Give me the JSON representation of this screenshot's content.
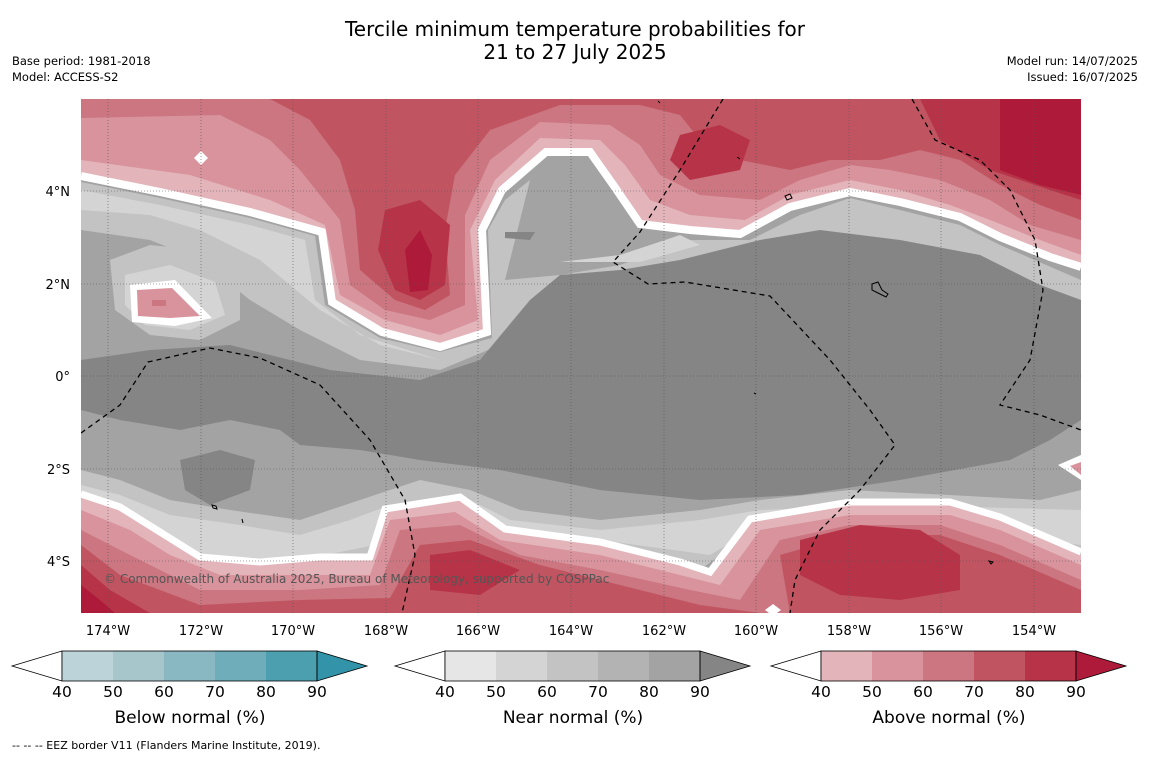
{
  "header": {
    "title_line1": "Tercile minimum temperature probabilities for",
    "title_line2": "21 to 27 July 2025",
    "base_period": "Base period: 1981-2018",
    "model": "Model: ACCESS-S2",
    "model_run": "Model run: 14/07/2025",
    "issued": "Issued: 16/07/2025"
  },
  "map": {
    "lon_labels": [
      "174°W",
      "172°W",
      "170°W",
      "168°W",
      "166°W",
      "164°W",
      "162°W",
      "160°W",
      "158°W",
      "156°W",
      "154°W"
    ],
    "lat_labels": [
      "4°N",
      "2°N",
      "0°",
      "2°S",
      "4°S"
    ],
    "copyright": "© Commonwealth of Australia 2025, Bureau of Meteorology, supported by COSPPac"
  },
  "colorbars": [
    {
      "id": "below",
      "label": "Below normal (%)",
      "ticks": [
        "40",
        "50",
        "60",
        "70",
        "80",
        "90"
      ],
      "colors": [
        "#ffffff",
        "#bcd3d9",
        "#a6c6cc",
        "#8ab8c2",
        "#6eadb9",
        "#4b9fae",
        "#3393a8"
      ]
    },
    {
      "id": "near",
      "label": "Near normal (%)",
      "ticks": [
        "40",
        "50",
        "60",
        "70",
        "80",
        "90"
      ],
      "colors": [
        "#ffffff",
        "#e6e6e6",
        "#d4d4d4",
        "#c3c3c3",
        "#b3b3b3",
        "#a3a3a3",
        "#858585"
      ]
    },
    {
      "id": "above",
      "label": "Above normal (%)",
      "ticks": [
        "40",
        "50",
        "60",
        "70",
        "80",
        "90"
      ],
      "colors": [
        "#ffffff",
        "#e3b5bb",
        "#d8939c",
        "#cb7680",
        "#c05561",
        "#b73448",
        "#ae1a39"
      ]
    }
  ],
  "footnote": "--  --  -- EEZ border V11 (Flanders Marine Institute, 2019)."
}
